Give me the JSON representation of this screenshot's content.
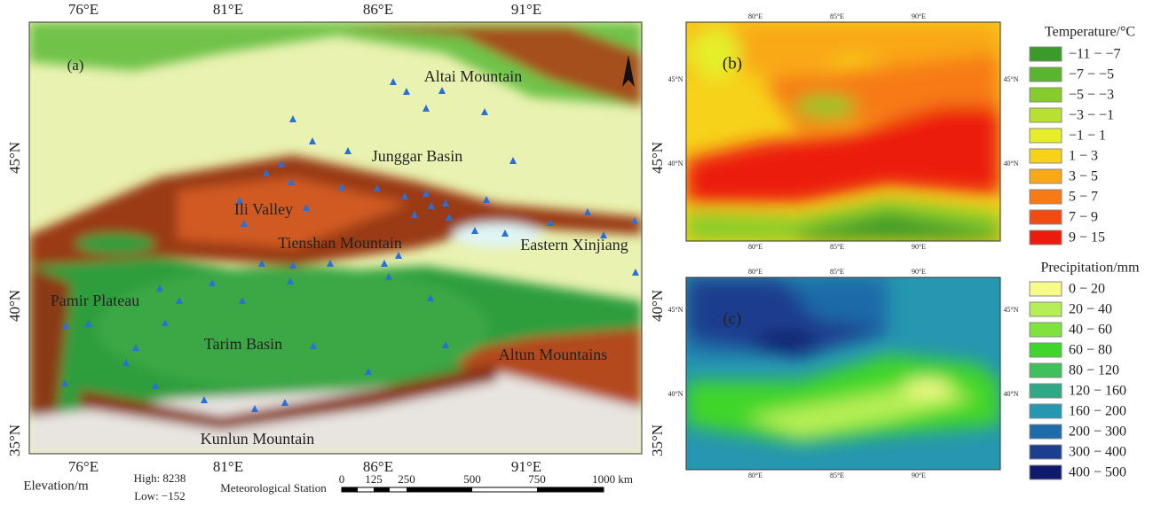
{
  "panel_a": {
    "label": "(a)",
    "top_ticks": [
      "76°E",
      "81°E",
      "86°E",
      "91°E"
    ],
    "bottom_ticks": [
      "76°E",
      "81°E",
      "86°E",
      "91°E"
    ],
    "left_ticks": [
      "45°N",
      "40°N",
      "35°N"
    ],
    "right_ticks": [
      "45°N",
      "40°N",
      "35°N"
    ],
    "places": [
      "Altai Mountain",
      "Junggar Basin",
      "Ili Valley",
      "Tienshan Mountain",
      "Eastern Xinjiang",
      "Pamir Plateau",
      "Tarim Basin",
      "Altun Mountains",
      "Kunlun Mountain"
    ],
    "legend": {
      "elevation_title": "Elevation/m",
      "high": "High: 8238",
      "low": "Low: −152",
      "station": "Meteorological Station",
      "scale_labels": [
        "0",
        "125",
        "250",
        "500",
        "750",
        "1000 km"
      ]
    }
  },
  "panel_b": {
    "label": "(b)",
    "top_ticks": [
      "80°E",
      "85°E",
      "90°E"
    ],
    "bottom_ticks": [
      "80°E",
      "85°E",
      "90°E"
    ],
    "left_ticks": [
      "45°N",
      "40°N"
    ],
    "right_ticks": [
      "45°N",
      "40°N"
    ],
    "legend": {
      "title": "Temperature/°C",
      "items": [
        {
          "label": "−11 − −7",
          "color": "#3a9a2a"
        },
        {
          "label": "−7 − −5",
          "color": "#5ab52e"
        },
        {
          "label": "−5 − −3",
          "color": "#86cc2c"
        },
        {
          "label": "−3 − −1",
          "color": "#b8e030"
        },
        {
          "label": "−1 − 1",
          "color": "#e6ee2a"
        },
        {
          "label": "1 − 3",
          "color": "#f6d21a"
        },
        {
          "label": "3 − 5",
          "color": "#f9a818"
        },
        {
          "label": "5 − 7",
          "color": "#f77a14"
        },
        {
          "label": "7 − 9",
          "color": "#f14a12"
        },
        {
          "label": "9 − 15",
          "color": "#ec1b10"
        }
      ]
    }
  },
  "panel_c": {
    "label": "(c)",
    "top_ticks": [
      "80°E",
      "85°E",
      "90°E"
    ],
    "bottom_ticks": [
      "80°E",
      "85°E",
      "90°E"
    ],
    "left_ticks": [
      "45°N",
      "40°N"
    ],
    "right_ticks": [
      "45°N",
      "40°N"
    ],
    "legend": {
      "title": "Precipitation/mm",
      "items": [
        {
          "label": "0 − 20",
          "color": "#f6fb8a"
        },
        {
          "label": "20 − 40",
          "color": "#b6ef55"
        },
        {
          "label": "40 − 60",
          "color": "#7ee33a"
        },
        {
          "label": "60 − 80",
          "color": "#3fd52a"
        },
        {
          "label": "80 − 120",
          "color": "#3ec05a"
        },
        {
          "label": "120 − 160",
          "color": "#2fa985"
        },
        {
          "label": "160 − 200",
          "color": "#2597b0"
        },
        {
          "label": "200 − 300",
          "color": "#1f6aa8"
        },
        {
          "label": "300 − 400",
          "color": "#1c3e8e"
        },
        {
          "label": "400 − 500",
          "color": "#101a6a"
        }
      ]
    }
  }
}
